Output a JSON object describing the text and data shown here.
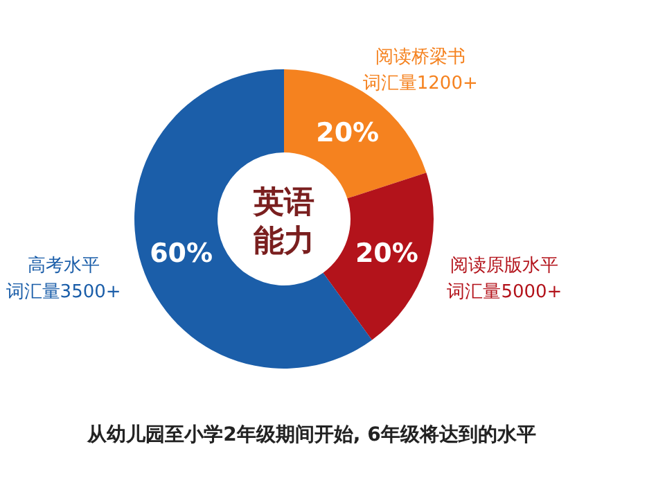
{
  "chart_data": {
    "type": "donut",
    "title": "英语能力",
    "categories": [
      "阅读桥梁书词汇量1200+",
      "阅读原版水平词汇量5000+",
      "高考水平词汇量3500+"
    ],
    "values": [
      20,
      20,
      60
    ],
    "colors": [
      "#f5821f",
      "#b3131b",
      "#1b5ea9"
    ],
    "value_labels": [
      "20%",
      "20%",
      "60%"
    ],
    "annotations": [
      "从幼儿园至小学2年级期间开始, 6年级将达到的水平"
    ]
  }
}
